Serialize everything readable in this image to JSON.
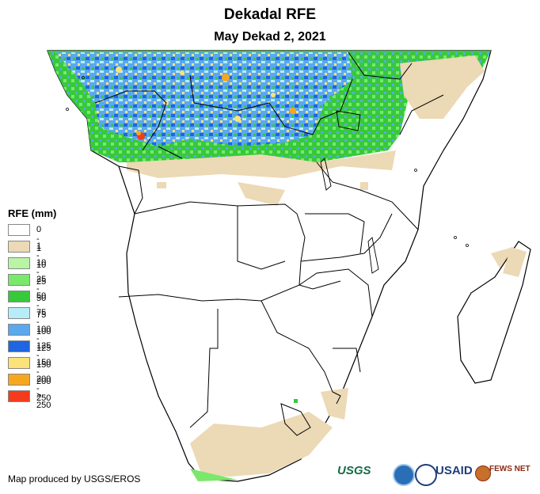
{
  "header": {
    "title": "Dekadal RFE",
    "subtitle": "May Dekad 2, 2021"
  },
  "legend": {
    "title": "RFE (mm)",
    "items": [
      {
        "label": "0 - 1",
        "color": "#ffffff"
      },
      {
        "label": "1 - 10",
        "color": "#ecd9b5"
      },
      {
        "label": "10 - 25",
        "color": "#b9f5a4"
      },
      {
        "label": "25 - 50",
        "color": "#7ae86b"
      },
      {
        "label": "50 - 75",
        "color": "#37c93b"
      },
      {
        "label": "75 - 100",
        "color": "#b7ecf8"
      },
      {
        "label": "100 - 125",
        "color": "#5aa8ee"
      },
      {
        "label": "125 - 150",
        "color": "#1f66e0"
      },
      {
        "label": "150 - 200",
        "color": "#fbe27a"
      },
      {
        "label": "200 - 250",
        "color": "#f7a71f"
      },
      {
        "label": "> 250",
        "color": "#f43b1c"
      }
    ]
  },
  "credit": "Map produced by USGS/EROS",
  "logos": {
    "usgs": "USGS",
    "usaid": "USAID",
    "fews": "FEWS NET"
  }
}
